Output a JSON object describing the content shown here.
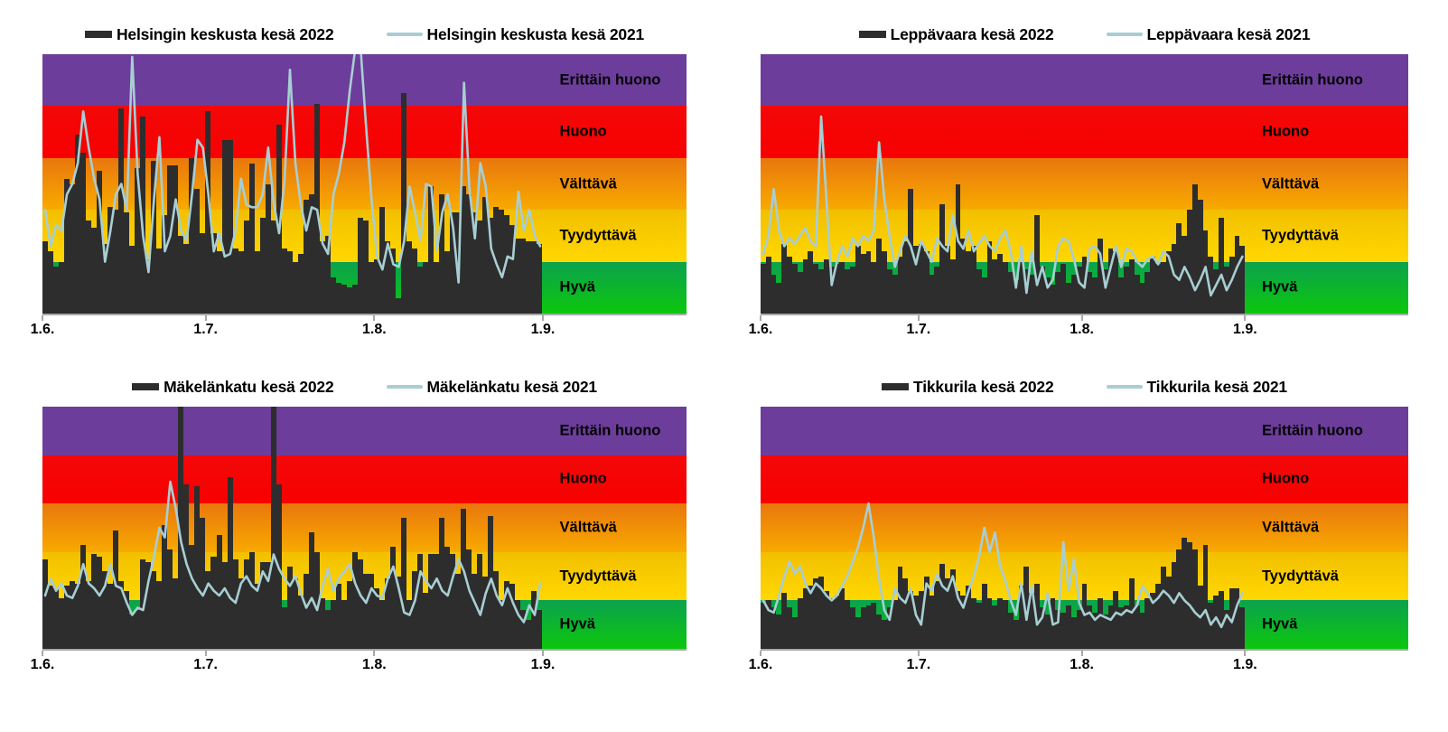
{
  "page": {
    "background": "#ffffff"
  },
  "colors": {
    "bar_2022": "#2d2d2d",
    "line_2021": "#a8ced3",
    "axis": "#a9a9a9",
    "band_erittain_huono": "#6c3d9b",
    "band_huono": "#f50404",
    "band_valttava_top": "#e9770d",
    "band_valttava_bottom": "#f8aa00",
    "band_tyydyttava_top": "#f2bf00",
    "band_tyydyttava_bottom": "#ffd800",
    "band_hyva_top": "#0ba24e",
    "band_hyva_bottom": "#0cc70c"
  },
  "bands": [
    {
      "label": "Erittäin huono",
      "value_range": [
        4,
        5
      ],
      "color": "#6c3d9b"
    },
    {
      "label": "Huono",
      "value_range": [
        3,
        4
      ],
      "color": "#f50404"
    },
    {
      "label": "Välttävä",
      "value_range": [
        2,
        3
      ],
      "color": "#f08c00"
    },
    {
      "label": "Tyydyttävä",
      "value_range": [
        1,
        2
      ],
      "color": "#ffd000"
    },
    {
      "label": "Hyvä",
      "value_range": [
        0,
        1
      ],
      "color": "#0cc70c"
    }
  ],
  "x_axis": {
    "labels": [
      "1.6.",
      "1.7.",
      "1.8.",
      "1.9."
    ],
    "day_positions": [
      0,
      30,
      61,
      92
    ],
    "days_total": 92
  },
  "chart_data": [
    {
      "type": "bar",
      "station": "Helsingin keskusta",
      "title": "",
      "xlabel": "",
      "ylabel": "",
      "ylim": [
        0,
        5
      ],
      "x_tick_labels": [
        "1.6.",
        "1.7.",
        "1.8.",
        "1.9."
      ],
      "legend_position": "top-center",
      "series": [
        {
          "name": "Helsingin keskusta kesä 2022",
          "type": "bar",
          "color": "#2d2d2d",
          "values": [
            1.4,
            1.2,
            0.9,
            1.0,
            2.6,
            2.5,
            3.45,
            3.1,
            1.8,
            1.65,
            2.75,
            1.35,
            2.05,
            2.0,
            3.95,
            1.95,
            1.3,
            2.8,
            3.8,
            1.05,
            2.95,
            1.25,
            1.9,
            2.85,
            2.85,
            1.5,
            1.35,
            3.0,
            2.4,
            1.55,
            3.9,
            1.55,
            1.2,
            3.35,
            3.35,
            1.25,
            1.2,
            1.8,
            2.9,
            1.2,
            1.85,
            2.5,
            1.8,
            3.65,
            1.25,
            1.2,
            1.0,
            1.15,
            2.2,
            2.3,
            4.05,
            1.4,
            1.5,
            0.7,
            0.6,
            0.55,
            0.5,
            0.55,
            1.85,
            1.8,
            1.0,
            1.05,
            2.05,
            1.4,
            1.25,
            0.3,
            4.25,
            1.4,
            1.25,
            0.9,
            1.0,
            2.45,
            1.0,
            2.3,
            1.2,
            1.95,
            1.95,
            2.45,
            2.3,
            1.95,
            1.8,
            2.25,
            1.85,
            2.05,
            2.0,
            1.9,
            1.7,
            1.45,
            1.45,
            1.4,
            1.4,
            1.35
          ]
        },
        {
          "name": "Helsingin keskusta kesä 2021",
          "type": "line",
          "color": "#a8ced3",
          "values": [
            2.0,
            1.3,
            1.7,
            1.6,
            2.3,
            2.5,
            2.9,
            3.9,
            3.2,
            2.6,
            2.2,
            1.0,
            1.6,
            2.3,
            2.5,
            2.0,
            4.95,
            2.7,
            1.5,
            0.8,
            2.2,
            3.4,
            1.2,
            1.5,
            2.2,
            1.6,
            1.4,
            2.3,
            3.35,
            3.2,
            2.3,
            1.2,
            1.55,
            1.1,
            1.15,
            1.6,
            2.6,
            2.1,
            2.05,
            2.05,
            2.3,
            3.2,
            2.15,
            1.55,
            2.55,
            4.7,
            2.9,
            2.1,
            1.6,
            2.05,
            2.0,
            1.35,
            1.15,
            2.3,
            2.7,
            3.3,
            4.3,
            5.1,
            5.1,
            3.6,
            2.2,
            1.1,
            0.85,
            1.35,
            0.95,
            0.9,
            1.4,
            2.45,
            1.95,
            1.4,
            2.5,
            2.45,
            1.2,
            1.95,
            2.3,
            1.65,
            0.6,
            4.45,
            2.4,
            1.45,
            2.9,
            2.45,
            1.25,
            0.95,
            0.7,
            1.1,
            1.05,
            2.35,
            1.6,
            2.0,
            1.5,
            1.3
          ]
        }
      ]
    },
    {
      "type": "bar",
      "station": "Leppävaara",
      "title": "",
      "xlabel": "",
      "ylabel": "",
      "ylim": [
        0,
        5
      ],
      "x_tick_labels": [
        "1.6.",
        "1.7.",
        "1.8.",
        "1.9."
      ],
      "legend_position": "top-center",
      "series": [
        {
          "name": "Leppävaara kesä 2022",
          "type": "bar",
          "color": "#2d2d2d",
          "values": [
            0.95,
            1.1,
            0.75,
            0.6,
            1.35,
            1.1,
            0.95,
            0.8,
            1.05,
            1.2,
            0.95,
            0.85,
            1.05,
            0.9,
            0.95,
            1.0,
            0.85,
            0.9,
            1.3,
            1.15,
            1.2,
            1.0,
            1.45,
            1.2,
            0.85,
            0.75,
            1.1,
            1.4,
            2.4,
            1.3,
            1.35,
            1.2,
            0.75,
            0.9,
            2.1,
            1.3,
            1.05,
            2.5,
            1.45,
            1.2,
            1.3,
            0.85,
            0.7,
            1.4,
            1.05,
            1.15,
            1.0,
            0.8,
            0.65,
            1.0,
            0.85,
            0.75,
            1.9,
            0.9,
            0.7,
            0.55,
            0.8,
            0.95,
            0.6,
            0.75,
            0.9,
            1.1,
            0.8,
            0.7,
            1.45,
            0.85,
            1.25,
            1.2,
            0.7,
            0.9,
            1.05,
            0.75,
            0.6,
            0.8,
            1.1,
            0.95,
            1.0,
            1.2,
            1.35,
            1.75,
            1.5,
            2.0,
            2.5,
            2.2,
            1.6,
            1.1,
            0.85,
            1.85,
            0.9,
            1.1,
            1.5,
            1.3
          ]
        },
        {
          "name": "Leppävaara kesä 2021",
          "type": "line",
          "color": "#a8ced3",
          "values": [
            1.15,
            1.5,
            2.4,
            1.6,
            1.3,
            1.45,
            1.35,
            1.5,
            1.65,
            1.4,
            1.3,
            3.8,
            2.2,
            0.55,
            1.0,
            1.3,
            1.1,
            1.45,
            1.3,
            1.5,
            1.4,
            1.6,
            3.3,
            2.2,
            1.5,
            0.9,
            1.2,
            1.5,
            1.3,
            0.95,
            1.4,
            1.2,
            1.0,
            1.45,
            1.3,
            1.2,
            1.9,
            1.4,
            1.25,
            1.6,
            1.2,
            1.35,
            1.5,
            1.3,
            1.2,
            1.45,
            1.6,
            1.2,
            0.5,
            1.3,
            0.4,
            1.2,
            0.55,
            0.9,
            0.5,
            0.65,
            1.3,
            1.45,
            1.4,
            1.05,
            0.6,
            0.5,
            1.25,
            1.3,
            1.15,
            0.5,
            0.9,
            1.3,
            0.9,
            1.25,
            1.2,
            1.0,
            0.9,
            1.05,
            1.1,
            0.95,
            1.2,
            1.1,
            0.75,
            0.65,
            0.9,
            0.7,
            0.45,
            0.65,
            0.9,
            0.35,
            0.55,
            0.75,
            0.45,
            0.65,
            0.9,
            1.1
          ]
        }
      ]
    },
    {
      "type": "bar",
      "station": "Mäkelänkatu",
      "title": "",
      "xlabel": "",
      "ylabel": "",
      "ylim": [
        0,
        5
      ],
      "x_tick_labels": [
        "1.6.",
        "1.7.",
        "1.8.",
        "1.9."
      ],
      "legend_position": "top-center",
      "series": [
        {
          "name": "Mäkelänkatu kesä 2022",
          "type": "bar",
          "color": "#2d2d2d",
          "values": [
            1.85,
            1.3,
            1.25,
            1.05,
            1.3,
            1.4,
            1.35,
            2.15,
            1.4,
            1.95,
            1.9,
            1.6,
            1.35,
            2.45,
            1.4,
            1.2,
            0.7,
            0.8,
            1.85,
            1.8,
            1.6,
            1.4,
            2.55,
            2.05,
            1.45,
            5.2,
            3.4,
            2.15,
            3.35,
            2.7,
            1.6,
            1.9,
            2.35,
            1.8,
            3.55,
            1.85,
            1.45,
            1.85,
            2.0,
            1.35,
            1.8,
            1.8,
            5.3,
            3.4,
            0.85,
            1.7,
            1.45,
            1.1,
            1.55,
            2.4,
            2.0,
            1.05,
            0.8,
            1.0,
            1.35,
            1.0,
            1.4,
            2.0,
            1.85,
            1.55,
            1.55,
            1.25,
            1.0,
            1.45,
            2.1,
            1.5,
            2.7,
            1.0,
            1.6,
            1.95,
            1.15,
            1.95,
            1.95,
            2.7,
            2.1,
            1.95,
            1.55,
            2.9,
            2.05,
            1.55,
            1.95,
            1.5,
            2.75,
            1.6,
            1.0,
            1.4,
            1.35,
            1.0,
            0.8,
            0.6,
            1.2,
            0.8
          ]
        },
        {
          "name": "Mäkelänkatu kesä 2021",
          "type": "line",
          "color": "#a8ced3",
          "values": [
            1.1,
            1.45,
            1.2,
            1.35,
            1.1,
            1.05,
            1.3,
            1.75,
            1.35,
            1.25,
            1.1,
            1.3,
            1.75,
            1.3,
            1.25,
            0.95,
            0.7,
            0.85,
            0.8,
            1.4,
            1.9,
            2.5,
            2.3,
            3.45,
            2.9,
            2.2,
            1.75,
            1.45,
            1.25,
            1.1,
            1.35,
            1.2,
            1.1,
            1.25,
            1.05,
            0.95,
            1.35,
            1.5,
            1.3,
            1.2,
            1.6,
            1.4,
            1.95,
            1.65,
            1.45,
            1.3,
            1.5,
            1.15,
            0.85,
            1.05,
            0.8,
            1.3,
            1.65,
            1.2,
            1.45,
            1.6,
            1.75,
            1.35,
            1.1,
            0.95,
            1.25,
            1.1,
            1.05,
            1.45,
            1.7,
            1.25,
            0.75,
            0.7,
            1.0,
            1.6,
            1.4,
            1.25,
            1.45,
            1.2,
            1.1,
            1.5,
            1.85,
            1.6,
            1.2,
            0.95,
            0.7,
            1.15,
            1.45,
            1.1,
            0.9,
            1.25,
            0.95,
            0.7,
            0.55,
            0.9,
            0.7,
            1.35
          ]
        }
      ]
    },
    {
      "type": "bar",
      "station": "Tikkurila",
      "title": "",
      "xlabel": "",
      "ylabel": "",
      "ylim": [
        0,
        5
      ],
      "x_tick_labels": [
        "1.6.",
        "1.7.",
        "1.8.",
        "1.9."
      ],
      "legend_position": "top-center",
      "series": [
        {
          "name": "Tikkurila kesä 2022",
          "type": "bar",
          "color": "#2d2d2d",
          "values": [
            0.95,
            1.0,
            0.85,
            0.7,
            1.15,
            0.85,
            0.65,
            1.05,
            1.25,
            1.3,
            1.45,
            1.5,
            1.2,
            1.05,
            1.1,
            1.25,
            1.0,
            0.85,
            0.65,
            0.85,
            0.9,
            0.95,
            0.7,
            0.6,
            0.85,
            1.0,
            1.7,
            1.45,
            1.2,
            1.1,
            1.2,
            1.5,
            1.1,
            1.4,
            1.75,
            1.45,
            1.65,
            1.2,
            1.1,
            1.3,
            1.05,
            0.95,
            1.35,
            1.05,
            0.9,
            1.05,
            1.0,
            0.75,
            0.6,
            1.3,
            1.7,
            1.15,
            1.35,
            0.85,
            0.7,
            1.05,
            0.8,
            0.75,
            0.9,
            0.65,
            0.8,
            1.35,
            0.9,
            0.75,
            1.05,
            0.7,
            0.9,
            1.2,
            0.85,
            0.9,
            1.45,
            0.9,
            0.75,
            1.05,
            1.15,
            1.35,
            1.7,
            1.5,
            1.8,
            2.05,
            2.3,
            2.2,
            2.05,
            1.3,
            2.15,
            0.95,
            1.1,
            1.2,
            0.8,
            1.25,
            1.25,
            0.85
          ]
        },
        {
          "name": "Tikkurila kesä 2021",
          "type": "line",
          "color": "#a8ced3",
          "values": [
            1.0,
            0.8,
            0.75,
            1.1,
            1.5,
            1.8,
            1.55,
            1.7,
            1.35,
            1.15,
            1.35,
            1.25,
            1.1,
            1.0,
            1.1,
            1.3,
            1.5,
            1.8,
            2.1,
            2.5,
            3.0,
            2.3,
            1.45,
            0.8,
            0.6,
            1.25,
            1.05,
            0.95,
            1.25,
            0.7,
            0.5,
            1.35,
            1.2,
            1.55,
            1.3,
            1.2,
            1.5,
            1.05,
            0.85,
            1.2,
            1.5,
            1.9,
            2.5,
            2.0,
            2.4,
            1.7,
            1.4,
            1.0,
            0.7,
            1.35,
            0.6,
            1.3,
            0.5,
            0.65,
            1.15,
            0.5,
            0.55,
            2.2,
            1.2,
            1.85,
            0.95,
            0.7,
            0.75,
            0.6,
            0.7,
            0.65,
            0.6,
            0.75,
            0.7,
            0.8,
            0.75,
            0.9,
            1.3,
            1.15,
            0.95,
            1.05,
            1.2,
            1.1,
            0.95,
            1.15,
            1.0,
            0.9,
            0.75,
            0.65,
            0.8,
            0.5,
            0.65,
            0.45,
            0.7,
            0.55,
            0.9,
            1.15
          ]
        }
      ]
    }
  ]
}
